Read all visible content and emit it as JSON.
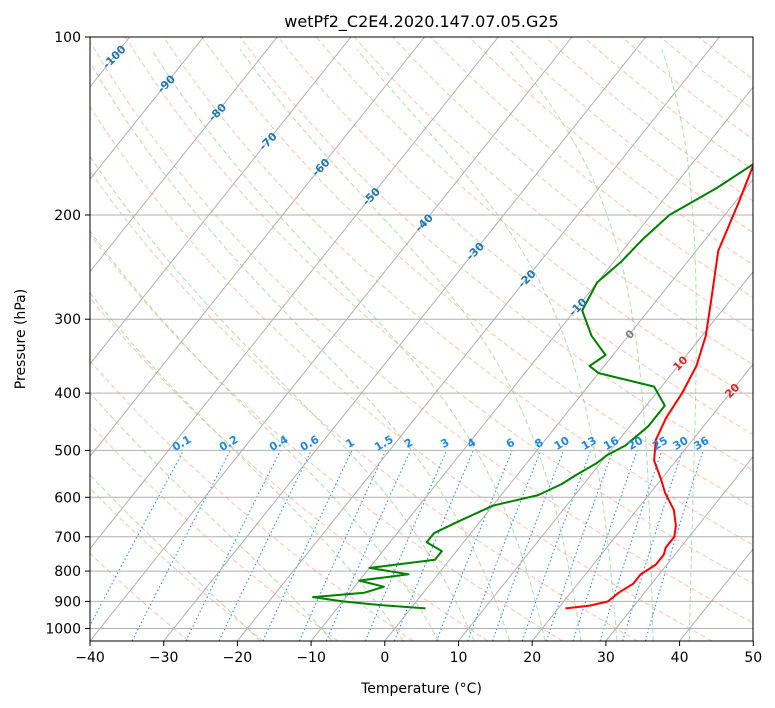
{
  "chart_data": {
    "type": "skew-t",
    "title": "wetPf2_C2E4.2020.147.07.05.G25",
    "xlabel": "Temperature (°C)",
    "ylabel": "Pressure (hPa)",
    "xlim": [
      -40,
      50
    ],
    "ylim": [
      1050,
      100
    ],
    "y_scale": "log",
    "x_ticks": [
      "−40",
      "−30",
      "−20",
      "−10",
      "0",
      "10",
      "20",
      "30",
      "40",
      "50"
    ],
    "y_ticks": [
      "100",
      "200",
      "300",
      "400",
      "500",
      "600",
      "700",
      "800",
      "900",
      "1000"
    ],
    "grid": true,
    "series": [
      {
        "color": "#ff0000",
        "points": [
          [
            21,
            925
          ],
          [
            24,
            915
          ],
          [
            26,
            900
          ],
          [
            26.5,
            870
          ],
          [
            27.5,
            840
          ],
          [
            27.5,
            810
          ],
          [
            28.5,
            780
          ],
          [
            28.5,
            750
          ],
          [
            28,
            730
          ],
          [
            28,
            700
          ],
          [
            27,
            670
          ],
          [
            25,
            630
          ],
          [
            22,
            590
          ],
          [
            20,
            560
          ],
          [
            17,
            520
          ],
          [
            15,
            480
          ],
          [
            14,
            440
          ],
          [
            13.5,
            400
          ],
          [
            12.5,
            360
          ],
          [
            10.5,
            320
          ],
          [
            7.5,
            280
          ],
          [
            3,
            230
          ],
          [
            0.5,
            190
          ],
          [
            -1.5,
            165
          ],
          [
            -1.5,
            150
          ],
          [
            3,
            130
          ],
          [
            9,
            117
          ],
          [
            15,
            107
          ],
          [
            15.3,
            100
          ]
        ]
      },
      {
        "color": "#008000",
        "points": [
          [
            2,
            925
          ],
          [
            -5,
            912
          ],
          [
            -10,
            900
          ],
          [
            -14.5,
            885
          ],
          [
            -8,
            870
          ],
          [
            -6,
            850
          ],
          [
            -10,
            830
          ],
          [
            -4,
            810
          ],
          [
            -10,
            790
          ],
          [
            -2,
            765
          ],
          [
            -2,
            740
          ],
          [
            -5,
            715
          ],
          [
            -5,
            690
          ],
          [
            -3,
            660
          ],
          [
            0,
            620
          ],
          [
            5,
            595
          ],
          [
            7,
            570
          ],
          [
            8,
            550
          ],
          [
            9.5,
            525
          ],
          [
            10,
            510
          ],
          [
            11.5,
            490
          ],
          [
            12.5,
            455
          ],
          [
            12.5,
            420
          ],
          [
            9,
            390
          ],
          [
            0,
            370
          ],
          [
            -2,
            360
          ],
          [
            -1,
            345
          ],
          [
            -5,
            320
          ],
          [
            -9,
            290
          ],
          [
            -10,
            260
          ],
          [
            -9,
            240
          ],
          [
            -8.5,
            220
          ],
          [
            -7.5,
            200
          ],
          [
            -4,
            180
          ],
          [
            -1,
            160
          ],
          [
            0,
            145
          ],
          [
            -0.5,
            130
          ],
          [
            -3.5,
            117
          ],
          [
            -2,
            107
          ],
          [
            0,
            100
          ]
        ]
      }
    ],
    "reference_lines": {
      "dry_adiabats": [
        -30,
        -20,
        -10,
        0,
        10,
        20,
        30,
        40,
        50,
        60,
        70,
        80,
        90,
        100,
        110,
        120,
        130,
        140,
        150,
        160,
        170,
        180,
        190,
        200,
        210
      ],
      "moist_adiabats": [
        -20,
        -10,
        0,
        5,
        10,
        15,
        20,
        25,
        30,
        35,
        40
      ],
      "mixing_ratio": [
        "0.1",
        "0.2",
        "0.4",
        "0.6",
        "1",
        "1.5",
        "2",
        "3",
        "4",
        "6",
        "8",
        "10",
        "13",
        "16",
        "20",
        "25",
        "30",
        "36"
      ],
      "isotherm_labels": [
        "-100",
        "-90",
        "-80",
        "-70",
        "-60",
        "-50",
        "-40",
        "-30",
        "-20",
        "-10",
        "0",
        "10",
        "20",
        "30",
        "40"
      ]
    },
    "colors": {
      "temperature": "#ff0000",
      "dewpoint": "#008000",
      "isotherm_label_cold": "#1f77b4",
      "isotherm_label_zero": "#808080",
      "isotherm_label_warm": "#d62728",
      "mixing_ratio": "#1e88e5",
      "dry_adiabat": "#ff9a7a",
      "moist_adiabat": "#8fcf8f",
      "grid": "#b0b0b0"
    }
  }
}
